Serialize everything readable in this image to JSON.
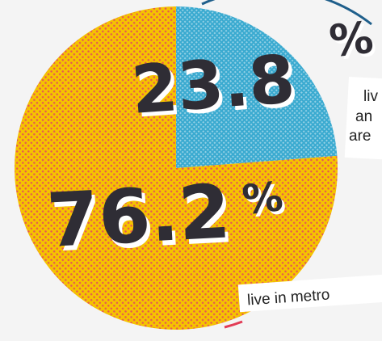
{
  "chart_data": {
    "type": "pie",
    "slices": [
      {
        "value": 76.2,
        "value_label": "76.2",
        "unit": "%",
        "note": "live in metro",
        "color": "#f5c400"
      },
      {
        "value": 23.8,
        "value_label": "23.8",
        "unit": "%",
        "note_lines": [
          "liv",
          "an",
          "are"
        ],
        "color": "#3aaad0"
      }
    ],
    "colors": {
      "halftone_yellow": "#e85a4f",
      "halftone_blue": "#ffffff",
      "text": "#2f2d35",
      "ring_top": "#1f5f8b",
      "ring_bottom": "#e23b55"
    }
  }
}
